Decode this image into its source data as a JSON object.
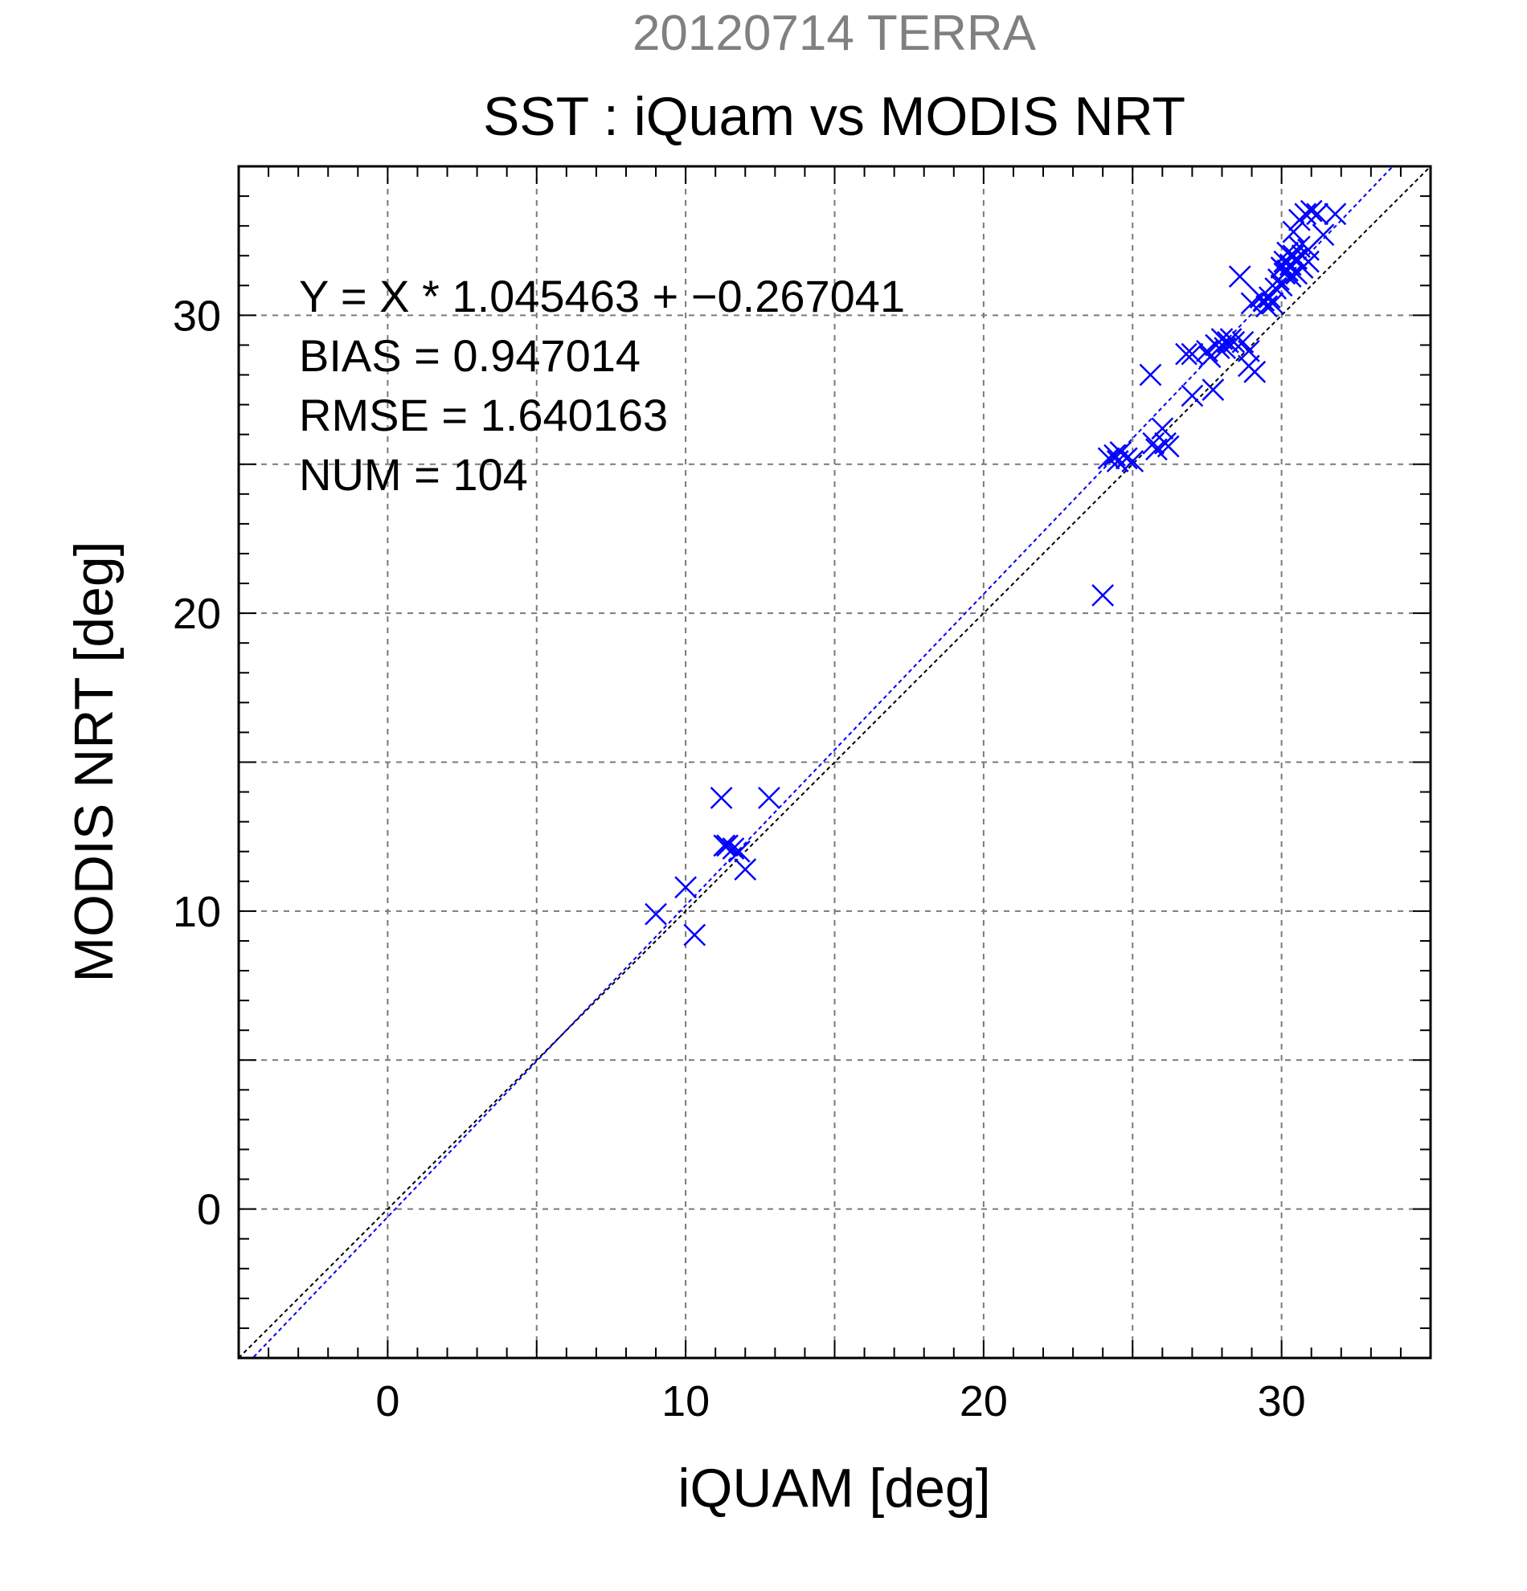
{
  "chart_data": {
    "type": "scatter",
    "title": "20120714 TERRA",
    "subtitle": "SST : iQuam vs MODIS NRT",
    "xlabel": "iQUAM [deg]",
    "ylabel": "MODIS NRT [deg]",
    "xlim": [
      -5,
      35
    ],
    "ylim": [
      -5,
      35
    ],
    "x_ticks": [
      0,
      10,
      20,
      30
    ],
    "y_ticks": [
      0,
      10,
      20,
      30
    ],
    "x_minor_step": 1,
    "y_minor_step": 1,
    "grid": true,
    "grid_step": 5,
    "stats": {
      "fit": "Y = X * 1.045463 + −0.267041",
      "bias": "BIAS = 0.947014",
      "rmse": "RMSE = 1.640163",
      "num": "NUM = 104"
    },
    "fit_line": {
      "slope": 1.045463,
      "intercept": -0.267041,
      "color": "#0000ff"
    },
    "identity_line": {
      "slope": 1,
      "intercept": 0,
      "color": "#000000"
    },
    "marker": "x",
    "marker_color": "#0000ff",
    "points": [
      [
        9.0,
        9.9
      ],
      [
        10.0,
        10.8
      ],
      [
        10.3,
        9.2
      ],
      [
        11.2,
        13.8
      ],
      [
        11.3,
        12.2
      ],
      [
        11.4,
        12.2
      ],
      [
        11.6,
        12.1
      ],
      [
        11.8,
        12.0
      ],
      [
        12.0,
        11.4
      ],
      [
        12.8,
        13.8
      ],
      [
        24.0,
        20.6
      ],
      [
        24.2,
        25.2
      ],
      [
        24.4,
        25.3
      ],
      [
        24.5,
        25.1
      ],
      [
        24.6,
        25.4
      ],
      [
        24.8,
        25.2
      ],
      [
        25.0,
        25.1
      ],
      [
        25.6,
        28.0
      ],
      [
        25.7,
        25.7
      ],
      [
        25.8,
        25.5
      ],
      [
        26.0,
        26.2
      ],
      [
        26.1,
        25.7
      ],
      [
        26.2,
        25.6
      ],
      [
        26.8,
        28.7
      ],
      [
        27.0,
        27.3
      ],
      [
        27.0,
        28.7
      ],
      [
        27.5,
        28.8
      ],
      [
        27.6,
        28.6
      ],
      [
        27.7,
        27.5
      ],
      [
        27.8,
        29.0
      ],
      [
        27.9,
        28.9
      ],
      [
        28.0,
        29.2
      ],
      [
        28.1,
        28.9
      ],
      [
        28.2,
        29.1
      ],
      [
        28.3,
        29.2
      ],
      [
        28.4,
        29.1
      ],
      [
        28.6,
        31.3
      ],
      [
        28.7,
        29.1
      ],
      [
        28.9,
        28.3
      ],
      [
        28.9,
        28.8
      ],
      [
        29.0,
        30.4
      ],
      [
        29.1,
        28.1
      ],
      [
        29.3,
        30.6
      ],
      [
        29.4,
        30.5
      ],
      [
        29.5,
        30.3
      ],
      [
        29.6,
        30.6
      ],
      [
        29.7,
        30.4
      ],
      [
        29.8,
        30.9
      ],
      [
        29.9,
        31.2
      ],
      [
        30.0,
        31.6
      ],
      [
        30.0,
        31.0
      ],
      [
        30.1,
        31.4
      ],
      [
        30.1,
        31.8
      ],
      [
        30.2,
        31.5
      ],
      [
        30.2,
        32.1
      ],
      [
        30.3,
        31.3
      ],
      [
        30.3,
        31.7
      ],
      [
        30.4,
        32.0
      ],
      [
        30.4,
        32.8
      ],
      [
        30.5,
        31.4
      ],
      [
        30.5,
        31.9
      ],
      [
        30.6,
        32.3
      ],
      [
        30.6,
        33.2
      ],
      [
        30.7,
        31.6
      ],
      [
        30.7,
        32.0
      ],
      [
        30.8,
        33.4
      ],
      [
        30.9,
        31.8
      ],
      [
        30.9,
        32.2
      ],
      [
        31.0,
        33.5
      ],
      [
        31.2,
        33.4
      ],
      [
        31.4,
        32.7
      ],
      [
        31.8,
        33.4
      ]
    ]
  }
}
